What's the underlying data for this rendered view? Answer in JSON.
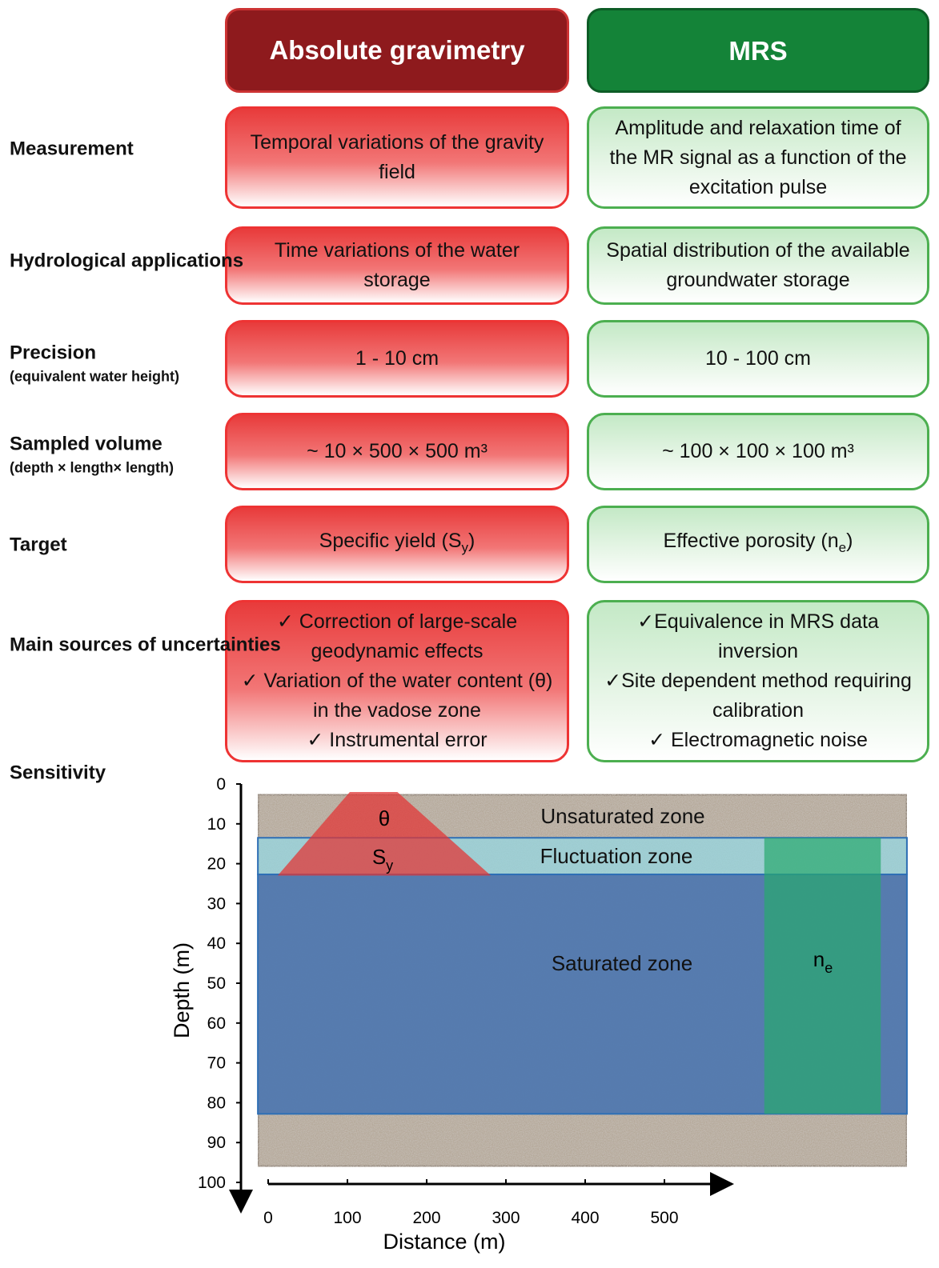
{
  "header": {
    "columns": [
      "Absolute gravimetry",
      "MRS"
    ]
  },
  "rows": [
    {
      "label": "Measurement",
      "cells": [
        [
          "Temporal variations of the gravity field"
        ],
        [
          "Amplitude and relaxation time of the MR signal as a function of the excitation pulse"
        ]
      ]
    },
    {
      "label": "Hydrological applications",
      "cells": [
        [
          "Time variations of the water storage"
        ],
        [
          "Spatial distribution of the available groundwater storage"
        ]
      ]
    },
    {
      "label": "Precision",
      "sublabel": "(equivalent water height)",
      "cells": [
        [
          "1 - 10 cm"
        ],
        [
          "10 - 100 cm"
        ]
      ]
    },
    {
      "label": "Sampled volume",
      "sublabel": "(depth × length× length)",
      "cells": [
        [
          "~ 10 × 500 × 500 m³"
        ],
        [
          "~ 100 × 100 × 100 m³"
        ]
      ]
    },
    {
      "label": "Target",
      "cells": [
        [
          {
            "text": "Specific yield (S",
            "sub": "y",
            "tail": ")"
          }
        ],
        [
          {
            "text": "Effective porosity (n",
            "sub": "e",
            "tail": ")"
          }
        ]
      ]
    },
    {
      "label": "Main sources of uncertainties",
      "cells": [
        [
          "✓ Correction of  large-scale geodynamic effects",
          "✓ Variation of the water content  (θ) in the vadose zone",
          "✓ Instrumental error"
        ],
        [
          "✓Equivalence in MRS data inversion",
          "✓Site dependent method requiring calibration",
          "✓ Electromagnetic noise"
        ]
      ]
    }
  ],
  "sensitivity": {
    "label": "Sensitivity",
    "ylabel": "Depth (m)",
    "xlabel": "Distance (m)",
    "ylim": [
      0,
      100
    ],
    "yticks": [
      0,
      10,
      20,
      30,
      40,
      50,
      60,
      70,
      80,
      90,
      100
    ],
    "xlim": [
      0,
      500
    ],
    "xticks": [
      0,
      100,
      200,
      300,
      400,
      500
    ],
    "section": {
      "x": [
        -13,
        806
      ],
      "depth": [
        2.6,
        96
      ]
    },
    "zones": [
      {
        "name": "Unsaturated zone",
        "top": 2.6,
        "bottom": 13.5
      },
      {
        "name": "Fluctuation zone",
        "top": 13.5,
        "bottom": 22.7
      },
      {
        "name": "Saturated zone",
        "top": 22.7,
        "bottom": 82.8
      }
    ],
    "gravimetry_footprint": {
      "top": 2,
      "bottom": 23,
      "top_x": [
        103,
        163
      ],
      "bottom_x": [
        12,
        281
      ],
      "label": "θ",
      "label2": "S",
      "label2_sub": "y"
    },
    "mrs_footprint": {
      "top": 13.5,
      "bottom": 82.8,
      "x": [
        626,
        773
      ],
      "label": "n",
      "label_sub": "e"
    }
  }
}
